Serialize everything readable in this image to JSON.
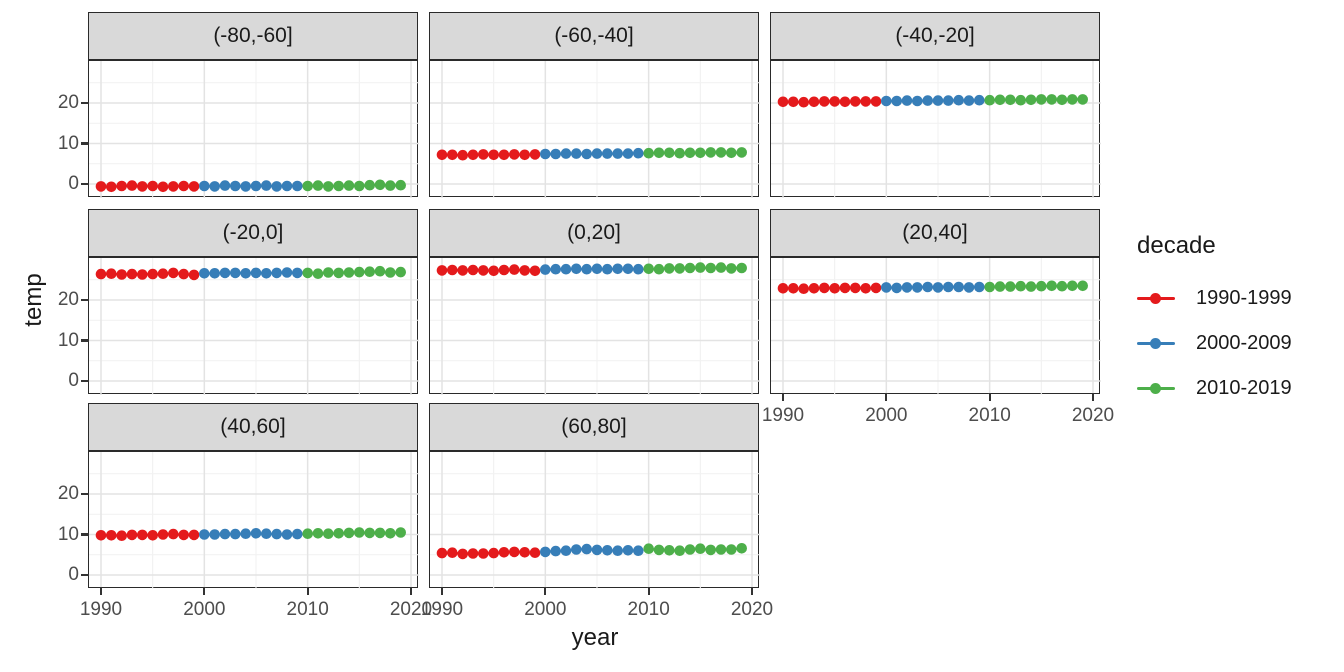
{
  "figure": {
    "y_axis_title": "temp",
    "x_axis_title": "year",
    "legend": {
      "title": "decade",
      "items": [
        {
          "label": "1990-1999",
          "color": "#E41A1C"
        },
        {
          "label": "2000-2009",
          "color": "#377EB8"
        },
        {
          "label": "2010-2019",
          "color": "#4DAF4A"
        }
      ]
    },
    "colors": {
      "strip_background": "#d9d9d9",
      "panel_border": "#2a2a2a",
      "grid_major": "#e3e3e3",
      "grid_minor": "#f1f1f1",
      "tick_label": "#4d4d4d"
    }
  },
  "chart_data": {
    "type": "scatter",
    "title": "",
    "xlabel": "year",
    "ylabel": "temp",
    "legend_title": "decade",
    "legend_position": "right",
    "grid": true,
    "x": [
      1990,
      1991,
      1992,
      1993,
      1994,
      1995,
      1996,
      1997,
      1998,
      1999,
      2000,
      2001,
      2002,
      2003,
      2004,
      2005,
      2006,
      2007,
      2008,
      2009,
      2010,
      2011,
      2012,
      2013,
      2014,
      2015,
      2016,
      2017,
      2018,
      2019
    ],
    "x_ticks": [
      1990,
      2000,
      2010,
      2020
    ],
    "y_ticks": [
      0,
      10,
      20
    ],
    "y_minor_ticks": [
      5,
      15,
      25
    ],
    "x_minor_ticks": [
      1995,
      2005,
      2015
    ],
    "ylim": [
      -3.4,
      30.4
    ],
    "xlim": [
      1988.8,
      2020.8
    ],
    "series": [
      {
        "name": "1990-1999",
        "color": "#E41A1C",
        "from": 1990,
        "to": 1999
      },
      {
        "name": "2000-2009",
        "color": "#377EB8",
        "from": 2000,
        "to": 2009
      },
      {
        "name": "2010-2019",
        "color": "#4DAF4A",
        "from": 2010,
        "to": 2019
      }
    ],
    "facets": [
      {
        "label": "(-80,-60]",
        "values": [
          -0.6,
          -0.7,
          -0.5,
          -0.4,
          -0.6,
          -0.5,
          -0.7,
          -0.6,
          -0.5,
          -0.6,
          -0.5,
          -0.6,
          -0.4,
          -0.5,
          -0.6,
          -0.5,
          -0.4,
          -0.6,
          -0.5,
          -0.5,
          -0.5,
          -0.4,
          -0.6,
          -0.5,
          -0.4,
          -0.5,
          -0.3,
          -0.2,
          -0.4,
          -0.3
        ]
      },
      {
        "label": "(-60,-40]",
        "values": [
          7.2,
          7.2,
          7.1,
          7.2,
          7.3,
          7.2,
          7.2,
          7.3,
          7.2,
          7.3,
          7.4,
          7.4,
          7.5,
          7.5,
          7.4,
          7.5,
          7.5,
          7.5,
          7.5,
          7.6,
          7.6,
          7.7,
          7.7,
          7.6,
          7.7,
          7.7,
          7.8,
          7.8,
          7.7,
          7.8
        ]
      },
      {
        "label": "(-40,-20]",
        "values": [
          20.3,
          20.3,
          20.2,
          20.3,
          20.4,
          20.4,
          20.3,
          20.4,
          20.4,
          20.4,
          20.5,
          20.5,
          20.6,
          20.5,
          20.6,
          20.6,
          20.6,
          20.7,
          20.6,
          20.7,
          20.7,
          20.8,
          20.8,
          20.7,
          20.8,
          20.9,
          20.9,
          20.8,
          20.9,
          20.9
        ]
      },
      {
        "label": "(-20,0]",
        "values": [
          26.4,
          26.5,
          26.3,
          26.4,
          26.3,
          26.4,
          26.5,
          26.7,
          26.4,
          26.2,
          26.6,
          26.6,
          26.7,
          26.7,
          26.6,
          26.7,
          26.6,
          26.7,
          26.8,
          26.7,
          26.7,
          26.5,
          26.8,
          26.7,
          26.8,
          26.9,
          27.0,
          27.1,
          26.8,
          26.9
        ]
      },
      {
        "label": "(0,20]",
        "values": [
          27.3,
          27.4,
          27.3,
          27.4,
          27.3,
          27.2,
          27.4,
          27.5,
          27.3,
          27.2,
          27.5,
          27.6,
          27.6,
          27.7,
          27.6,
          27.7,
          27.6,
          27.7,
          27.7,
          27.6,
          27.7,
          27.6,
          27.8,
          27.8,
          27.9,
          28.0,
          27.9,
          28.0,
          27.8,
          27.9
        ]
      },
      {
        "label": "(20,40]",
        "values": [
          22.9,
          22.9,
          22.8,
          22.9,
          23.0,
          22.9,
          23.0,
          23.0,
          22.9,
          23.0,
          23.1,
          23.0,
          23.1,
          23.1,
          23.2,
          23.1,
          23.2,
          23.2,
          23.1,
          23.2,
          23.2,
          23.3,
          23.3,
          23.4,
          23.3,
          23.4,
          23.5,
          23.4,
          23.5,
          23.5
        ]
      },
      {
        "label": "(40,60]",
        "values": [
          9.8,
          9.8,
          9.7,
          9.9,
          9.9,
          9.8,
          10.0,
          10.1,
          9.9,
          9.9,
          10.0,
          10.0,
          10.1,
          10.1,
          10.2,
          10.3,
          10.2,
          10.1,
          10.0,
          10.1,
          10.2,
          10.3,
          10.2,
          10.3,
          10.4,
          10.5,
          10.4,
          10.4,
          10.3,
          10.5
        ]
      },
      {
        "label": "(60,80]",
        "values": [
          5.4,
          5.5,
          5.2,
          5.3,
          5.3,
          5.4,
          5.6,
          5.7,
          5.6,
          5.5,
          5.7,
          5.9,
          6.0,
          6.3,
          6.4,
          6.2,
          6.1,
          6.0,
          6.1,
          6.0,
          6.5,
          6.2,
          6.1,
          6.0,
          6.3,
          6.5,
          6.2,
          6.3,
          6.3,
          6.6
        ]
      }
    ]
  }
}
